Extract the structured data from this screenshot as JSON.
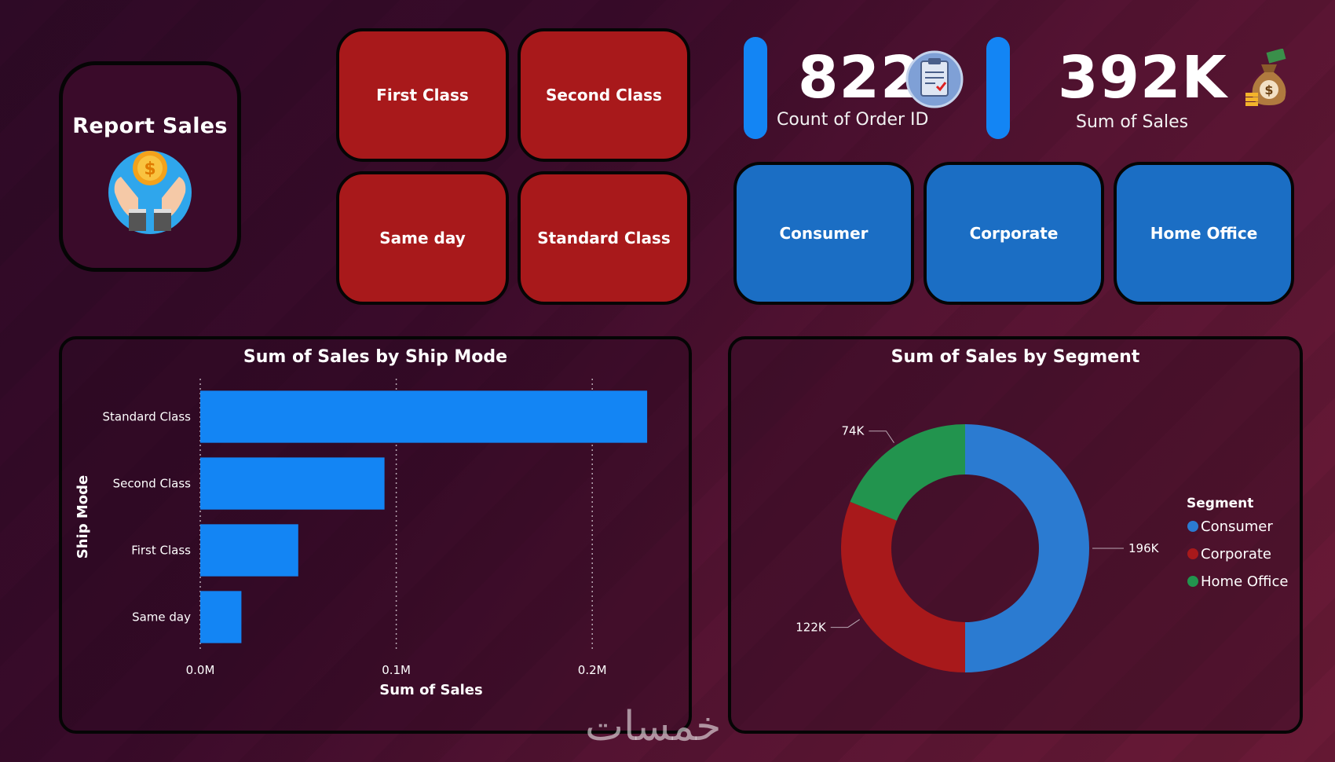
{
  "logo": {
    "title": "Report Sales"
  },
  "ship_buttons": [
    {
      "label": "First Class"
    },
    {
      "label": "Second Class"
    },
    {
      "label": "Same day"
    },
    {
      "label": "Standard Class"
    }
  ],
  "segment_buttons": [
    {
      "label": "Consumer"
    },
    {
      "label": "Corporate"
    },
    {
      "label": "Home Office"
    }
  ],
  "kpis": {
    "orders": {
      "value": "822",
      "label": "Count of Order ID"
    },
    "sales": {
      "value": "392K",
      "label": "Sum of Sales"
    }
  },
  "watermark": "خمسات",
  "colors": {
    "bar": "#1385f4",
    "consumer": "#2b7bd1",
    "corporate": "#a8191b",
    "home_office": "#22944e"
  },
  "chart_data": [
    {
      "type": "bar",
      "orientation": "horizontal",
      "title": "Sum of Sales by Ship Mode",
      "xlabel": "Sum of Sales",
      "ylabel": "Ship Mode",
      "categories": [
        "Standard Class",
        "Second Class",
        "First Class",
        "Same day"
      ],
      "values": [
        228000,
        94000,
        50000,
        21000
      ],
      "xlim": [
        0,
        250000
      ],
      "xticks": [
        0,
        100000,
        200000
      ],
      "xtick_labels": [
        "0.0M",
        "0.1M",
        "0.2M"
      ],
      "grid": "vertical dotted"
    },
    {
      "type": "pie",
      "variant": "donut",
      "title": "Sum of Sales by Segment",
      "legend_title": "Segment",
      "legend_position": "right",
      "categories": [
        "Consumer",
        "Corporate",
        "Home Office"
      ],
      "values": [
        196000,
        122000,
        74000
      ],
      "data_labels": [
        "196K",
        "122K",
        "74K"
      ]
    }
  ]
}
